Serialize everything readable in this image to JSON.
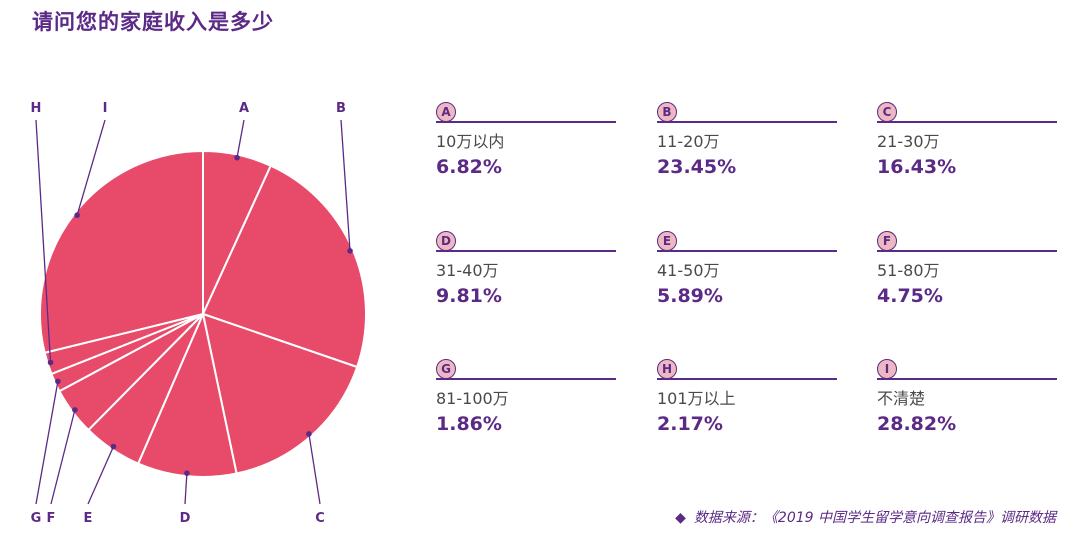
{
  "title": "请问您的家庭收入是多少",
  "source": {
    "marker": "◆",
    "text": "数据来源：《2019 中国学生留学意向调查报告》调研数据"
  },
  "colors": {
    "slice": "#e84a6a",
    "accent": "#5b2a86",
    "badge_fill": "#eeb8c2",
    "slice_border": "#ffffff"
  },
  "chart_data": {
    "type": "pie",
    "title": "请问您的家庭收入是多少",
    "slices": [
      {
        "key": "A",
        "label": "10万以内",
        "value": 6.82,
        "display": "6.82%"
      },
      {
        "key": "B",
        "label": "11-20万",
        "value": 23.45,
        "display": "23.45%"
      },
      {
        "key": "C",
        "label": "21-30万",
        "value": 16.43,
        "display": "16.43%"
      },
      {
        "key": "D",
        "label": "31-40万",
        "value": 9.81,
        "display": "9.81%"
      },
      {
        "key": "E",
        "label": "41-50万",
        "value": 5.89,
        "display": "5.89%"
      },
      {
        "key": "F",
        "label": "51-80万",
        "value": 4.75,
        "display": "4.75%"
      },
      {
        "key": "G",
        "label": "81-100万",
        "value": 1.86,
        "display": "1.86%"
      },
      {
        "key": "H",
        "label": "101万以上",
        "value": 2.17,
        "display": "2.17%"
      },
      {
        "key": "I",
        "label": "不清楚",
        "value": 28.82,
        "display": "28.82%"
      }
    ],
    "legend_placement": "right"
  }
}
